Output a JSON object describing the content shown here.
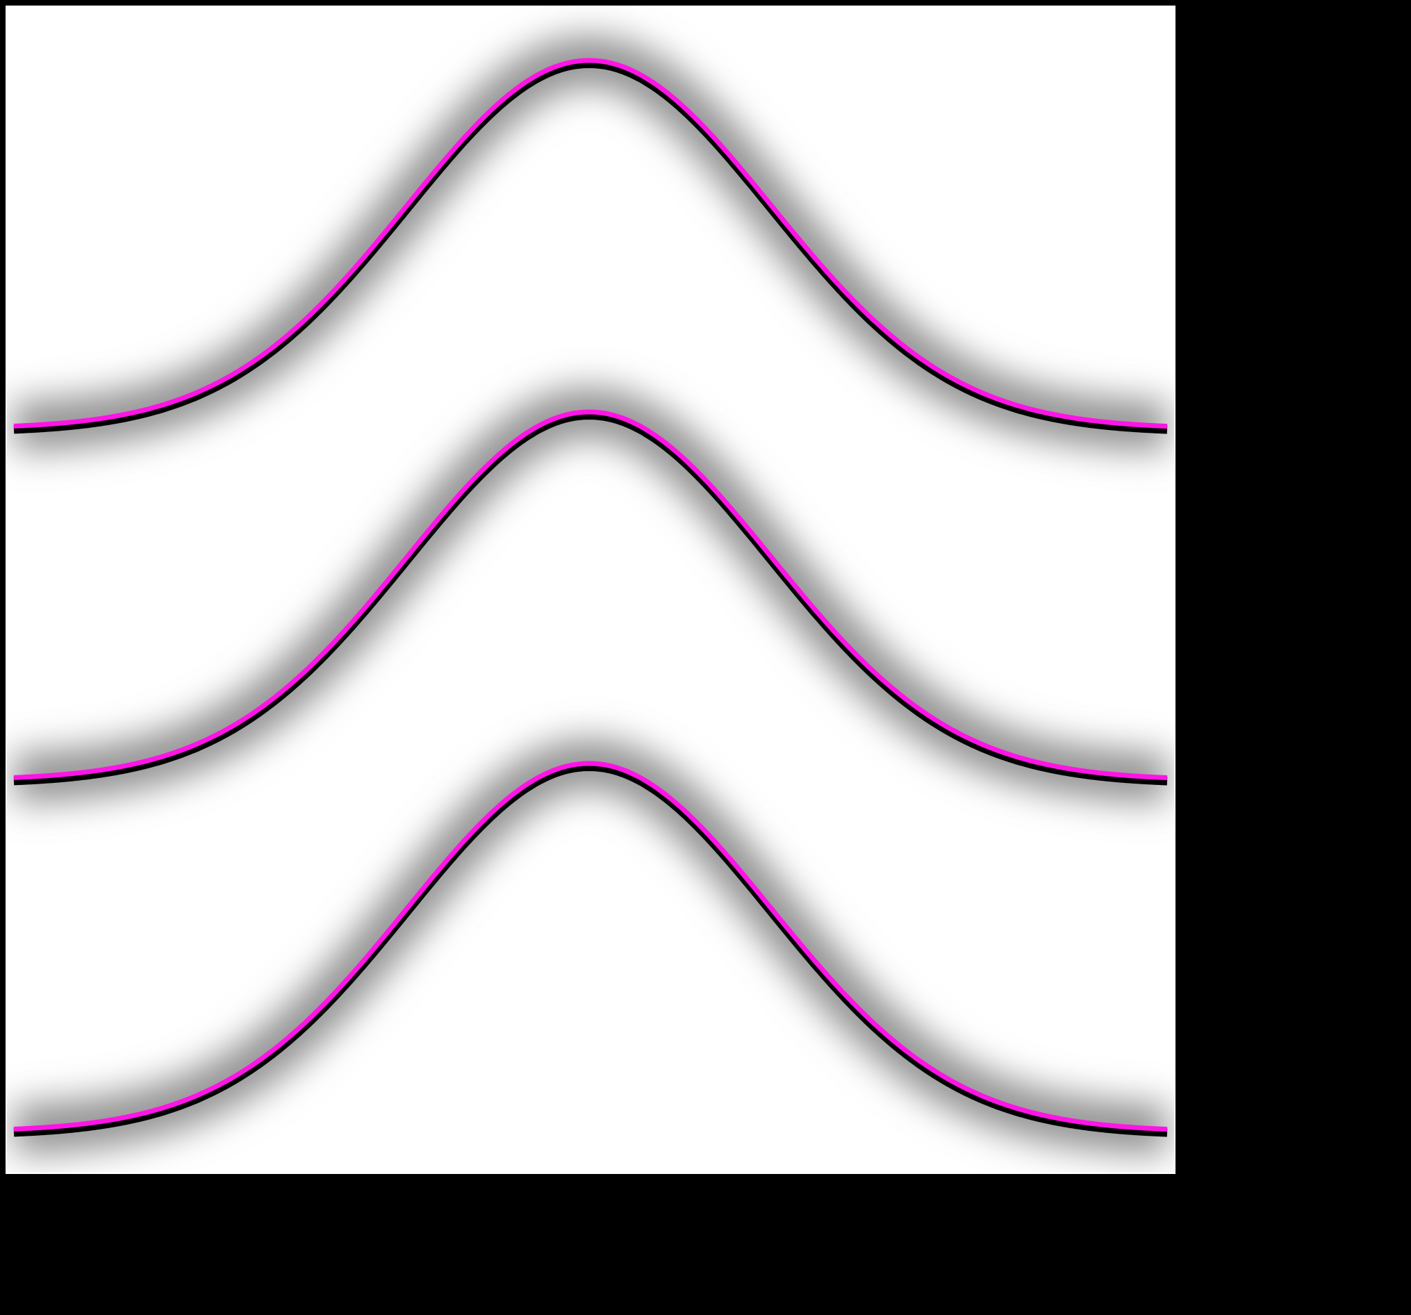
{
  "colors": {
    "page_background": "#000000",
    "panel_background": "#ffffff",
    "panel_border": "#000000",
    "glow": "#8c8c8c",
    "curve_outline": "#000000",
    "curve_core": "#ff14e6"
  },
  "curves": [
    {
      "name": "curve-top"
    },
    {
      "name": "curve-middle"
    },
    {
      "name": "curve-bottom"
    }
  ]
}
